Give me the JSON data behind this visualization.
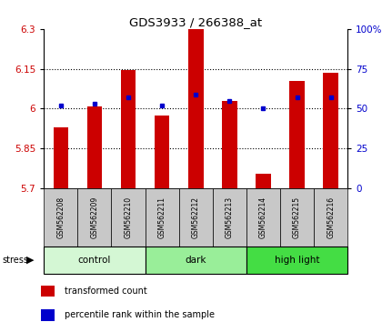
{
  "title": "GDS3933 / 266388_at",
  "samples": [
    "GSM562208",
    "GSM562209",
    "GSM562210",
    "GSM562211",
    "GSM562212",
    "GSM562213",
    "GSM562214",
    "GSM562215",
    "GSM562216"
  ],
  "transformed_counts": [
    5.93,
    6.01,
    6.145,
    5.975,
    6.3,
    6.03,
    5.755,
    6.105,
    6.135
  ],
  "percentile_ranks": [
    52,
    53,
    57,
    52,
    59,
    55,
    50,
    57,
    57
  ],
  "ymin": 5.7,
  "ymax": 6.3,
  "yticks": [
    5.7,
    5.85,
    6.0,
    6.15,
    6.3
  ],
  "ytick_labels": [
    "5.7",
    "5.85",
    "6",
    "6.15",
    "6.3"
  ],
  "right_yticks": [
    0,
    25,
    50,
    75,
    100
  ],
  "right_ytick_labels": [
    "0",
    "25",
    "50",
    "75",
    "100%"
  ],
  "bar_color": "#cc0000",
  "blue_color": "#0000cc",
  "grid_lines": [
    5.85,
    6.0,
    6.15
  ],
  "groups": [
    {
      "label": "control",
      "start": 0,
      "end": 3,
      "color": "#d4f7d4"
    },
    {
      "label": "dark",
      "start": 3,
      "end": 6,
      "color": "#99ee99"
    },
    {
      "label": "high light",
      "start": 6,
      "end": 9,
      "color": "#44dd44"
    }
  ],
  "stress_label": "stress",
  "legend_items": [
    {
      "color": "#cc0000",
      "label": "transformed count"
    },
    {
      "color": "#0000cc",
      "label": "percentile rank within the sample"
    }
  ],
  "bar_width": 0.45,
  "label_box_color": "#c8c8c8",
  "white": "#ffffff"
}
